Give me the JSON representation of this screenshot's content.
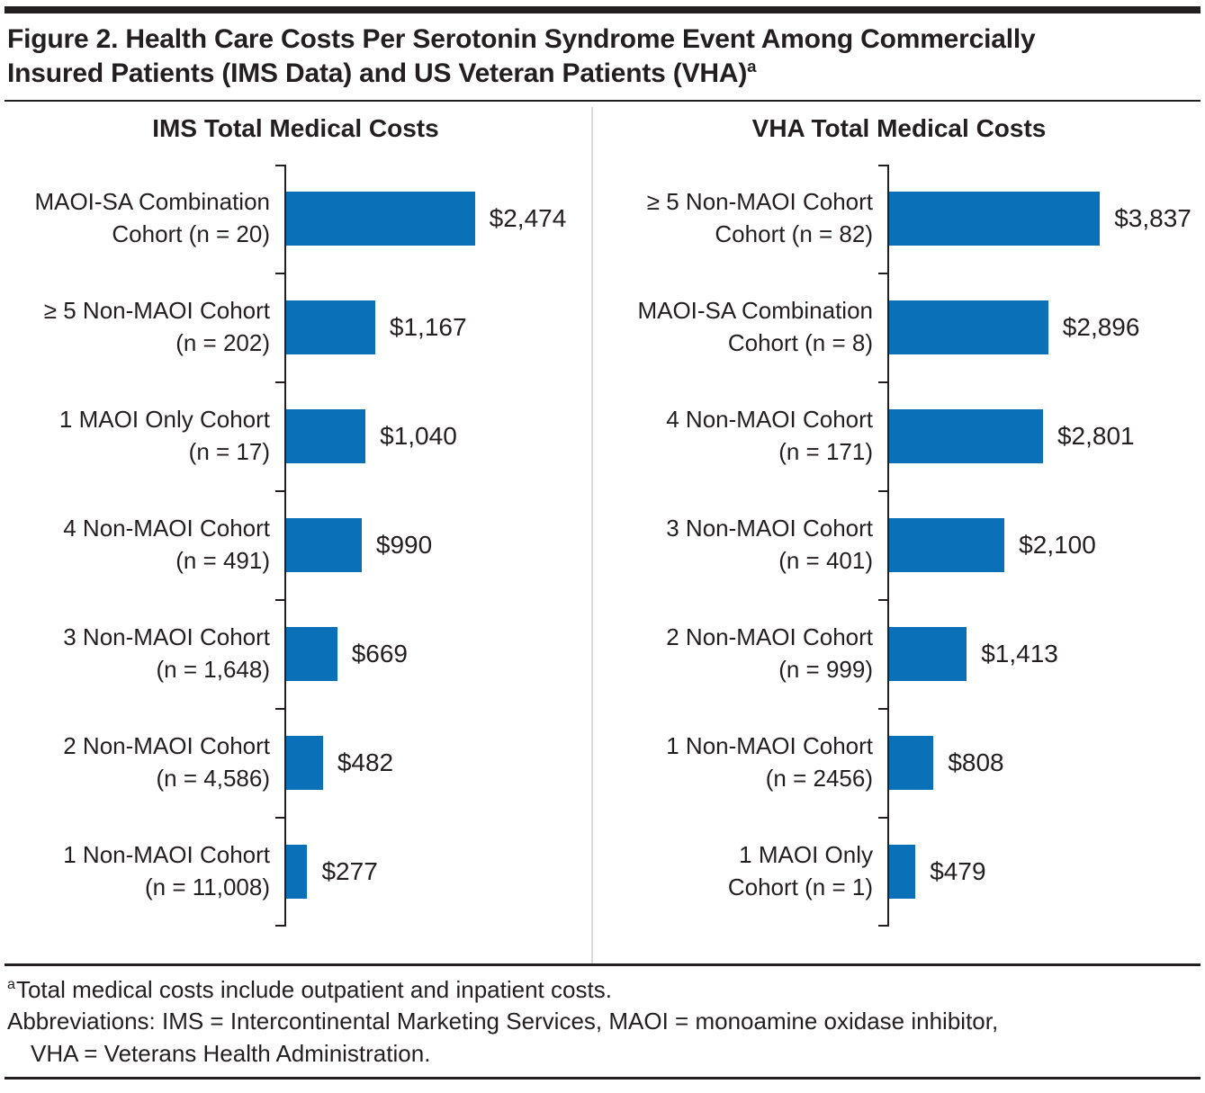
{
  "figure": {
    "title_line1": "Figure 2. Health Care Costs Per Serotonin Syndrome Event Among Commercially",
    "title_line2": "Insured Patients (IMS Data) and US Veteran Patients (VHA)",
    "title_sup": "a"
  },
  "colors": {
    "bar": "#0A71B8",
    "text": "#231F20",
    "divider": "#DBDBDB"
  },
  "chart_data": [
    {
      "type": "bar",
      "orientation": "horizontal",
      "title": "IMS Total Medical Costs",
      "xlim": [
        0,
        4000
      ],
      "grid": false,
      "legend": false,
      "value_label_position": "right-of-bar",
      "categories": [
        "MAOI-SA Combination Cohort (n = 20)",
        "≥ 5 Non-MAOI Cohort (n = 202)",
        "1 MAOI Only Cohort (n = 17)",
        "4 Non-MAOI Cohort (n = 491)",
        "3 Non-MAOI Cohort (n = 1,648)",
        "2 Non-MAOI Cohort (n = 4,586)",
        "1 Non-MAOI Cohort (n = 11,008)"
      ],
      "category_lines": [
        [
          "MAOI-SA Combination",
          "Cohort (n = 20)"
        ],
        [
          "≥ 5 Non-MAOI Cohort",
          "(n = 202)"
        ],
        [
          "1 MAOI Only Cohort",
          "(n = 17)"
        ],
        [
          "4 Non-MAOI Cohort",
          "(n = 491)"
        ],
        [
          "3 Non-MAOI Cohort",
          "(n = 1,648)"
        ],
        [
          "2 Non-MAOI Cohort",
          "(n = 4,586)"
        ],
        [
          "1 Non-MAOI Cohort",
          "(n = 11,008)"
        ]
      ],
      "values": [
        2474,
        1167,
        1040,
        990,
        669,
        482,
        277
      ],
      "value_labels": [
        "$2,474",
        "$1,167",
        "$1,040",
        "$990",
        "$669",
        "$482",
        "$277"
      ]
    },
    {
      "type": "bar",
      "orientation": "horizontal",
      "title": "VHA Total Medical Costs",
      "xlim": [
        0,
        5750
      ],
      "grid": false,
      "legend": false,
      "value_label_position": "right-of-bar",
      "categories": [
        "≥ 5 Non-MAOI Cohort Cohort (n = 82)",
        "MAOI-SA Combination Cohort (n = 8)",
        "4 Non-MAOI Cohort (n = 171)",
        "3 Non-MAOI Cohort (n = 401)",
        "2 Non-MAOI Cohort (n = 999)",
        "1 Non-MAOI Cohort (n = 2456)",
        "1 MAOI Only Cohort (n = 1)"
      ],
      "category_lines": [
        [
          "≥ 5 Non-MAOI Cohort",
          "Cohort (n = 82)"
        ],
        [
          "MAOI-SA Combination",
          "Cohort (n = 8)"
        ],
        [
          "4 Non-MAOI Cohort",
          "(n = 171)"
        ],
        [
          "3 Non-MAOI Cohort",
          "(n = 401)"
        ],
        [
          "2 Non-MAOI Cohort",
          "(n = 999)"
        ],
        [
          "1 Non-MAOI Cohort",
          "(n = 2456)"
        ],
        [
          "1 MAOI Only",
          "Cohort (n = 1)"
        ]
      ],
      "values": [
        3837,
        2896,
        2801,
        2100,
        1413,
        808,
        479
      ],
      "value_labels": [
        "$3,837",
        "$2,896",
        "$2,801",
        "$2,100",
        "$1,413",
        "$808",
        "$479"
      ]
    }
  ],
  "footnotes": {
    "sup": "a",
    "line1": "Total medical costs include outpatient and inpatient costs.",
    "line2": "Abbreviations: IMS = Intercontinental Marketing Services, MAOI = monoamine oxidase inhibitor,",
    "line3": "VHA = Veterans Health Administration."
  }
}
